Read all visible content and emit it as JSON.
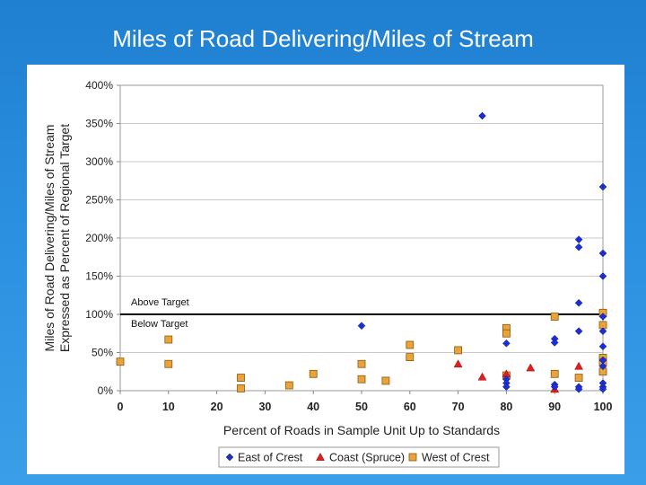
{
  "slide": {
    "title": "Miles of Road Delivering/Miles of Stream"
  },
  "chart_data": {
    "type": "scatter",
    "title": "",
    "xlabel": "Percent of Roads in Sample Unit Up to Standards",
    "ylabel_line1": "Miles of Road Delivering/Miles of Stream",
    "ylabel_line2": "Expressed as Percent of Regional Target",
    "xlim": [
      0,
      100
    ],
    "ylim": [
      0,
      400
    ],
    "x_ticks": [
      0,
      10,
      20,
      30,
      40,
      50,
      60,
      70,
      80,
      90,
      100
    ],
    "x_tick_labels": [
      "0",
      "10",
      "20",
      "30",
      "40",
      "50",
      "60",
      "70",
      "80",
      "90",
      "100"
    ],
    "y_ticks": [
      0,
      50,
      100,
      150,
      200,
      250,
      300,
      350,
      400
    ],
    "y_tick_labels": [
      "0%",
      "50%",
      "100%",
      "150%",
      "200%",
      "250%",
      "300%",
      "350%",
      "400%"
    ],
    "grid": "horizontal",
    "legend_position": "bottom",
    "reference_line": {
      "y": 100,
      "label_above": "Above Target",
      "label_below": "Below Target",
      "color": "#000000"
    },
    "series": [
      {
        "name": "East of Crest",
        "marker": "diamond",
        "color": "#1c2ed6",
        "points": [
          [
            50,
            85
          ],
          [
            75,
            360
          ],
          [
            80,
            62
          ],
          [
            80,
            15
          ],
          [
            80,
            10
          ],
          [
            80,
            5
          ],
          [
            90,
            68
          ],
          [
            90,
            63
          ],
          [
            90,
            8
          ],
          [
            90,
            5
          ],
          [
            95,
            198
          ],
          [
            95,
            188
          ],
          [
            95,
            115
          ],
          [
            95,
            78
          ],
          [
            95,
            5
          ],
          [
            95,
            2
          ],
          [
            100,
            267
          ],
          [
            100,
            180
          ],
          [
            100,
            150
          ],
          [
            100,
            97
          ],
          [
            100,
            78
          ],
          [
            100,
            58
          ],
          [
            100,
            40
          ],
          [
            100,
            32
          ],
          [
            100,
            10
          ],
          [
            100,
            5
          ],
          [
            100,
            2
          ]
        ]
      },
      {
        "name": "Coast (Spruce)",
        "marker": "triangle",
        "color": "#e01e1e",
        "points": [
          [
            70,
            35
          ],
          [
            75,
            18
          ],
          [
            80,
            22
          ],
          [
            85,
            30
          ],
          [
            90,
            2
          ],
          [
            95,
            32
          ]
        ]
      },
      {
        "name": "West of Crest",
        "marker": "square",
        "color": "#e8a33a",
        "points": [
          [
            0,
            38
          ],
          [
            10,
            67
          ],
          [
            10,
            35
          ],
          [
            25,
            17
          ],
          [
            25,
            3
          ],
          [
            35,
            7
          ],
          [
            40,
            22
          ],
          [
            50,
            35
          ],
          [
            50,
            15
          ],
          [
            55,
            13
          ],
          [
            60,
            60
          ],
          [
            60,
            44
          ],
          [
            70,
            53
          ],
          [
            80,
            82
          ],
          [
            80,
            75
          ],
          [
            80,
            20
          ],
          [
            90,
            97
          ],
          [
            90,
            22
          ],
          [
            95,
            17
          ],
          [
            100,
            102
          ],
          [
            100,
            86
          ],
          [
            100,
            43
          ],
          [
            100,
            37
          ],
          [
            100,
            25
          ]
        ]
      }
    ]
  }
}
